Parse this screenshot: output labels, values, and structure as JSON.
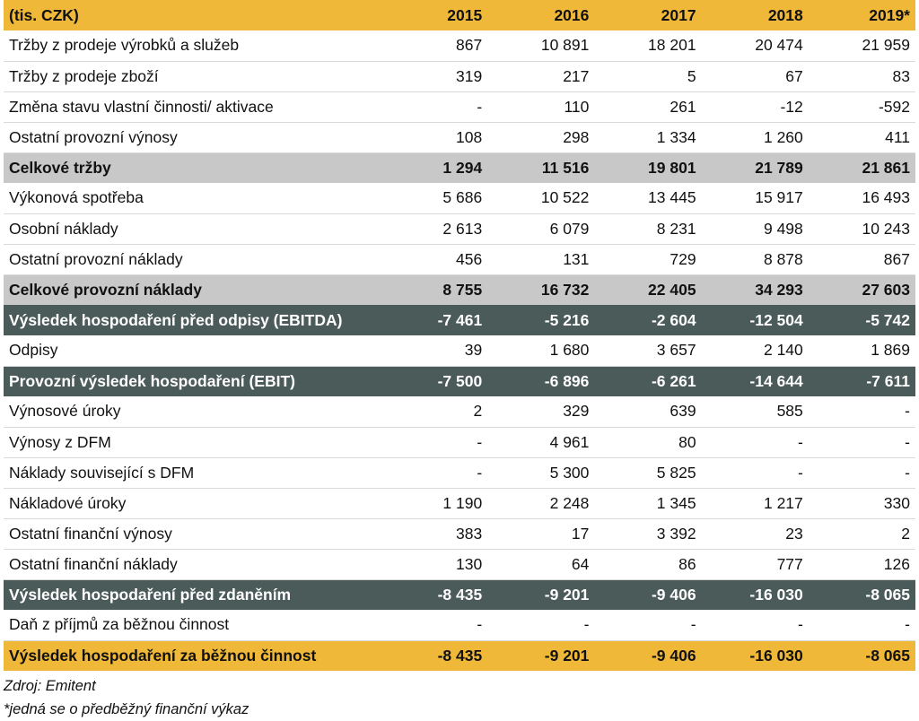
{
  "header": {
    "label": "(tis. CZK)",
    "years": [
      "2015",
      "2016",
      "2017",
      "2018",
      "2019*"
    ]
  },
  "rows": [
    {
      "label": "Tržby z prodeje výrobků a služeb",
      "values": [
        "867",
        "10 891",
        "18 201",
        "20 474",
        "21 959"
      ]
    },
    {
      "label": "Tržby z prodeje zboží",
      "values": [
        "319",
        "217",
        "5",
        "67",
        "83"
      ]
    },
    {
      "label": "Změna stavu vlastní činnosti/ aktivace",
      "values": [
        "-",
        "110",
        "261",
        "-12",
        "-592"
      ]
    },
    {
      "label": "Ostatní provozní výnosy",
      "values": [
        "108",
        "298",
        "1 334",
        "1 260",
        "411"
      ]
    },
    {
      "label": "Celkové tržby",
      "values": [
        "1 294",
        "11 516",
        "19 801",
        "21 789",
        "21 861"
      ]
    },
    {
      "label": "Výkonová spotřeba",
      "values": [
        "5 686",
        "10 522",
        "13 445",
        "15 917",
        "16 493"
      ]
    },
    {
      "label": "Osobní náklady",
      "values": [
        "2 613",
        "6 079",
        "8 231",
        "9 498",
        "10 243"
      ]
    },
    {
      "label": "Ostatní provozní náklady",
      "values": [
        "456",
        "131",
        "729",
        "8 878",
        "867"
      ]
    },
    {
      "label": "Celkové provozní náklady",
      "values": [
        "8 755",
        "16 732",
        "22 405",
        "34 293",
        "27 603"
      ]
    },
    {
      "label": "Výsledek hospodaření před odpisy (EBITDA)",
      "values": [
        "-7 461",
        "-5 216",
        "-2 604",
        "-12 504",
        "-5 742"
      ]
    },
    {
      "label": "Odpisy",
      "values": [
        "39",
        "1 680",
        "3 657",
        "2 140",
        "1 869"
      ]
    },
    {
      "label": "Provozní výsledek hospodaření (EBIT)",
      "values": [
        "-7 500",
        "-6 896",
        "-6 261",
        "-14 644",
        "-7 611"
      ]
    },
    {
      "label": "Výnosové úroky",
      "values": [
        "2",
        "329",
        "639",
        "585",
        "-"
      ]
    },
    {
      "label": "Výnosy z DFM",
      "values": [
        "-",
        "4 961",
        "80",
        "-",
        "-"
      ]
    },
    {
      "label": "Náklady související s DFM",
      "values": [
        "-",
        "5 300",
        "5 825",
        "-",
        "-"
      ]
    },
    {
      "label": "Nákladové úroky",
      "values": [
        "1 190",
        "2 248",
        "1 345",
        "1 217",
        "330"
      ]
    },
    {
      "label": "Ostatní finanční výnosy",
      "values": [
        "383",
        "17",
        "3 392",
        "23",
        "2"
      ]
    },
    {
      "label": "Ostatní finanční náklady",
      "values": [
        "130",
        "64",
        "86",
        "777",
        "126"
      ]
    },
    {
      "label": "Výsledek hospodaření před zdaněním",
      "values": [
        "-8 435",
        "-9 201",
        "-9 406",
        "-16 030",
        "-8 065"
      ]
    },
    {
      "label": "Daň z příjmů za běžnou činnost",
      "values": [
        "-",
        "-",
        "-",
        "-",
        "-"
      ]
    },
    {
      "label": "Výsledek hospodaření za běžnou činnost",
      "values": [
        "-8 435",
        "-9 201",
        "-9 406",
        "-16 030",
        "-8 065"
      ]
    }
  ],
  "notes": {
    "source": "Zdroj: Emitent",
    "footnote": "*jedná se o předběžný finanční výkaz"
  },
  "colors": {
    "gold": "#f0b838",
    "grey": "#c8c8c8",
    "dark": "#4b5b59"
  }
}
